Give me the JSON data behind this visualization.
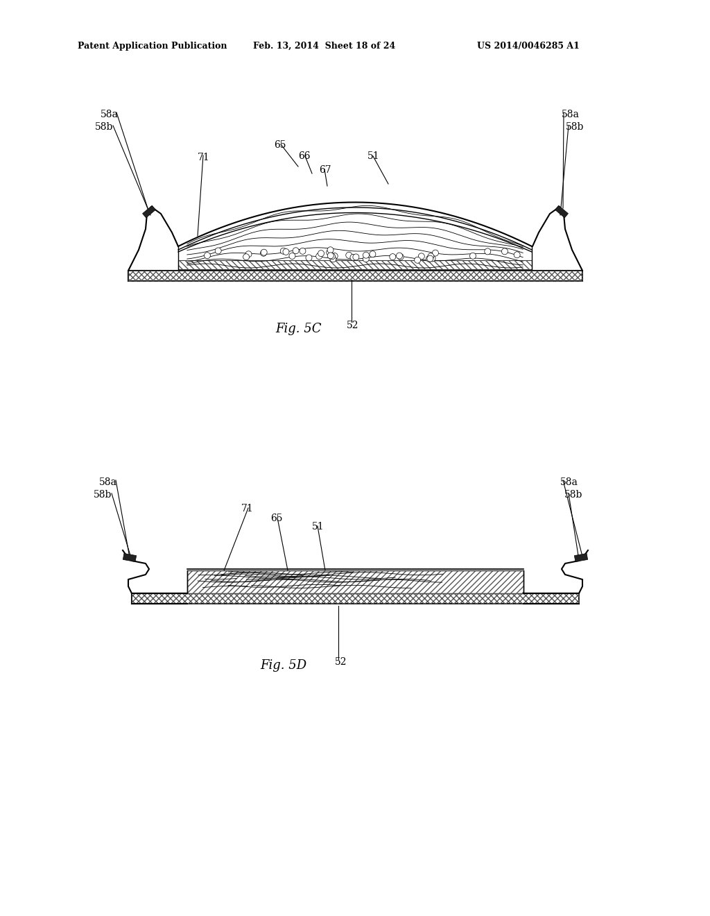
{
  "bg_color": "#ffffff",
  "header_text": "Patent Application Publication",
  "header_date": "Feb. 13, 2014  Sheet 18 of 24",
  "header_patent": "US 2014/0046285 A1",
  "fig5c_label": "Fig. 5C",
  "fig5d_label": "Fig. 5D",
  "text_color": "#000000",
  "line_color": "#000000"
}
